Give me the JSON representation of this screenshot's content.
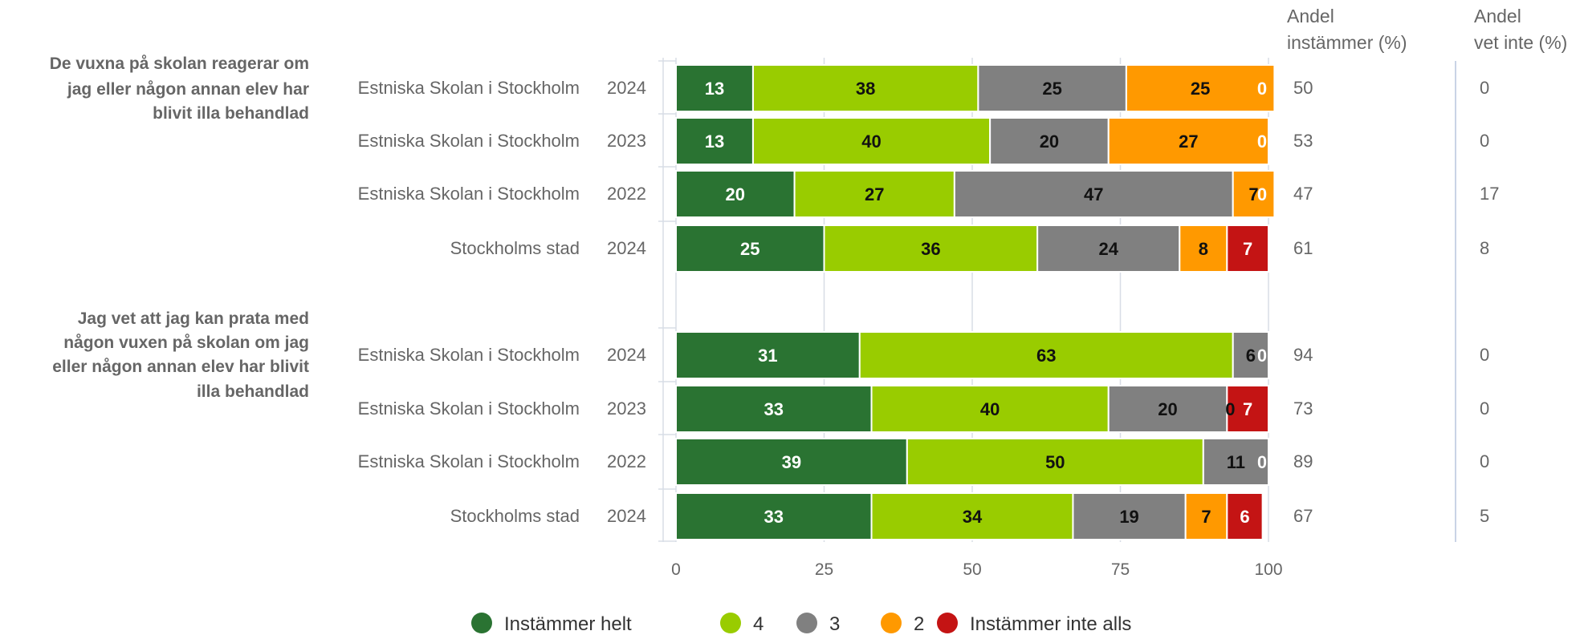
{
  "chart_data": {
    "type": "bar",
    "orientation": "horizontal",
    "stacked": true,
    "xlim": [
      0,
      100
    ],
    "xticks": [
      0,
      25,
      50,
      75,
      100
    ],
    "grid": true,
    "legend_position": "bottom",
    "column_headers": {
      "agree_title_line1": "Andel",
      "agree_title_line2": "instämmer (%)",
      "dontknow_title_line1": "Andel",
      "dontknow_title_line2": "vet inte (%)"
    },
    "legend": [
      {
        "name": "Instämmer helt",
        "color": "#2a7332"
      },
      {
        "name": "4",
        "color": "#99cc00"
      },
      {
        "name": "3",
        "color": "#808080"
      },
      {
        "name": "2",
        "color": "#ff9900"
      },
      {
        "name": "Instämmer inte alls",
        "color": "#c41414"
      }
    ],
    "groups": [
      {
        "question_lines": [
          "De vuxna på skolan reagerar om",
          "jag eller någon annan elev har",
          "blivit illa behandlad"
        ],
        "rows": [
          {
            "label": "Estniska Skolan i Stockholm",
            "year": "2024",
            "values": [
              13,
              38,
              25,
              25,
              0
            ],
            "agree": "50",
            "dontknow": "0"
          },
          {
            "label": "Estniska Skolan i Stockholm",
            "year": "2023",
            "values": [
              13,
              40,
              20,
              27,
              0
            ],
            "agree": "53",
            "dontknow": "0"
          },
          {
            "label": "Estniska Skolan i Stockholm",
            "year": "2022",
            "values": [
              20,
              27,
              47,
              7,
              0
            ],
            "agree": "47",
            "dontknow": "17"
          },
          {
            "label": "Stockholms stad",
            "year": "2024",
            "values": [
              25,
              36,
              24,
              8,
              7
            ],
            "agree": "61",
            "dontknow": "8"
          }
        ]
      },
      {
        "question_lines": [
          "Jag vet att jag kan prata med",
          "någon vuxen på skolan om jag",
          "eller någon annan elev har blivit",
          "illa behandlad"
        ],
        "rows": [
          {
            "label": "Estniska Skolan i Stockholm",
            "year": "2024",
            "values": [
              31,
              63,
              6,
              0,
              0
            ],
            "agree": "94",
            "dontknow": "0"
          },
          {
            "label": "Estniska Skolan i Stockholm",
            "year": "2023",
            "values": [
              33,
              40,
              20,
              0,
              7
            ],
            "agree": "73",
            "dontknow": "0"
          },
          {
            "label": "Estniska Skolan i Stockholm",
            "year": "2022",
            "values": [
              39,
              50,
              11,
              0,
              0
            ],
            "agree": "89",
            "dontknow": "0"
          },
          {
            "label": "Stockholms stad",
            "year": "2024",
            "values": [
              33,
              34,
              19,
              7,
              6
            ],
            "agree": "67",
            "dontknow": "5"
          }
        ]
      }
    ]
  }
}
